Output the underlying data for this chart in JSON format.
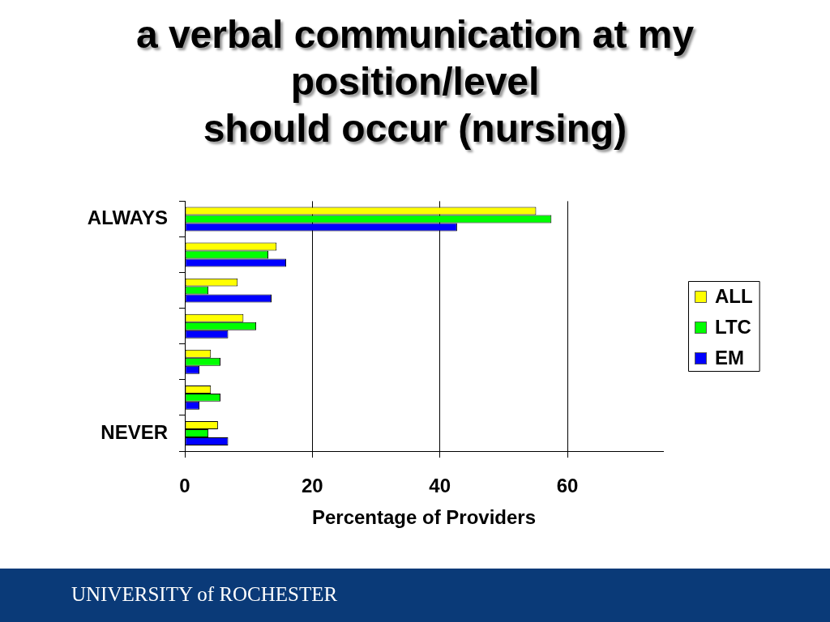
{
  "chart_data": {
    "type": "bar",
    "orientation": "horizontal",
    "title": "a verbal communication at my\nposition/level\nshould occur (nursing)",
    "xlabel": "Percentage of Providers",
    "categories": [
      "ALWAYS",
      null,
      null,
      null,
      null,
      null,
      "NEVER"
    ],
    "series": [
      {
        "name": "ALL",
        "color": "#ffff00",
        "values": [
          55.1,
          14.4,
          8.3,
          9.2,
          4.1,
          4.1,
          5.2
        ]
      },
      {
        "name": "LTC",
        "color": "#00ff00",
        "values": [
          57.5,
          13.1,
          3.7,
          11.2,
          5.6,
          5.6,
          3.7
        ]
      },
      {
        "name": "EM",
        "color": "#0000ff",
        "values": [
          42.7,
          15.9,
          13.6,
          6.8,
          2.3,
          2.3,
          6.8
        ]
      }
    ],
    "xlim": [
      0,
      75
    ],
    "xticks": [
      0,
      20,
      40,
      60
    ],
    "grid": "x",
    "legend": "right",
    "annotations": [
      "UNIVERSITY of ROCHESTER"
    ]
  }
}
